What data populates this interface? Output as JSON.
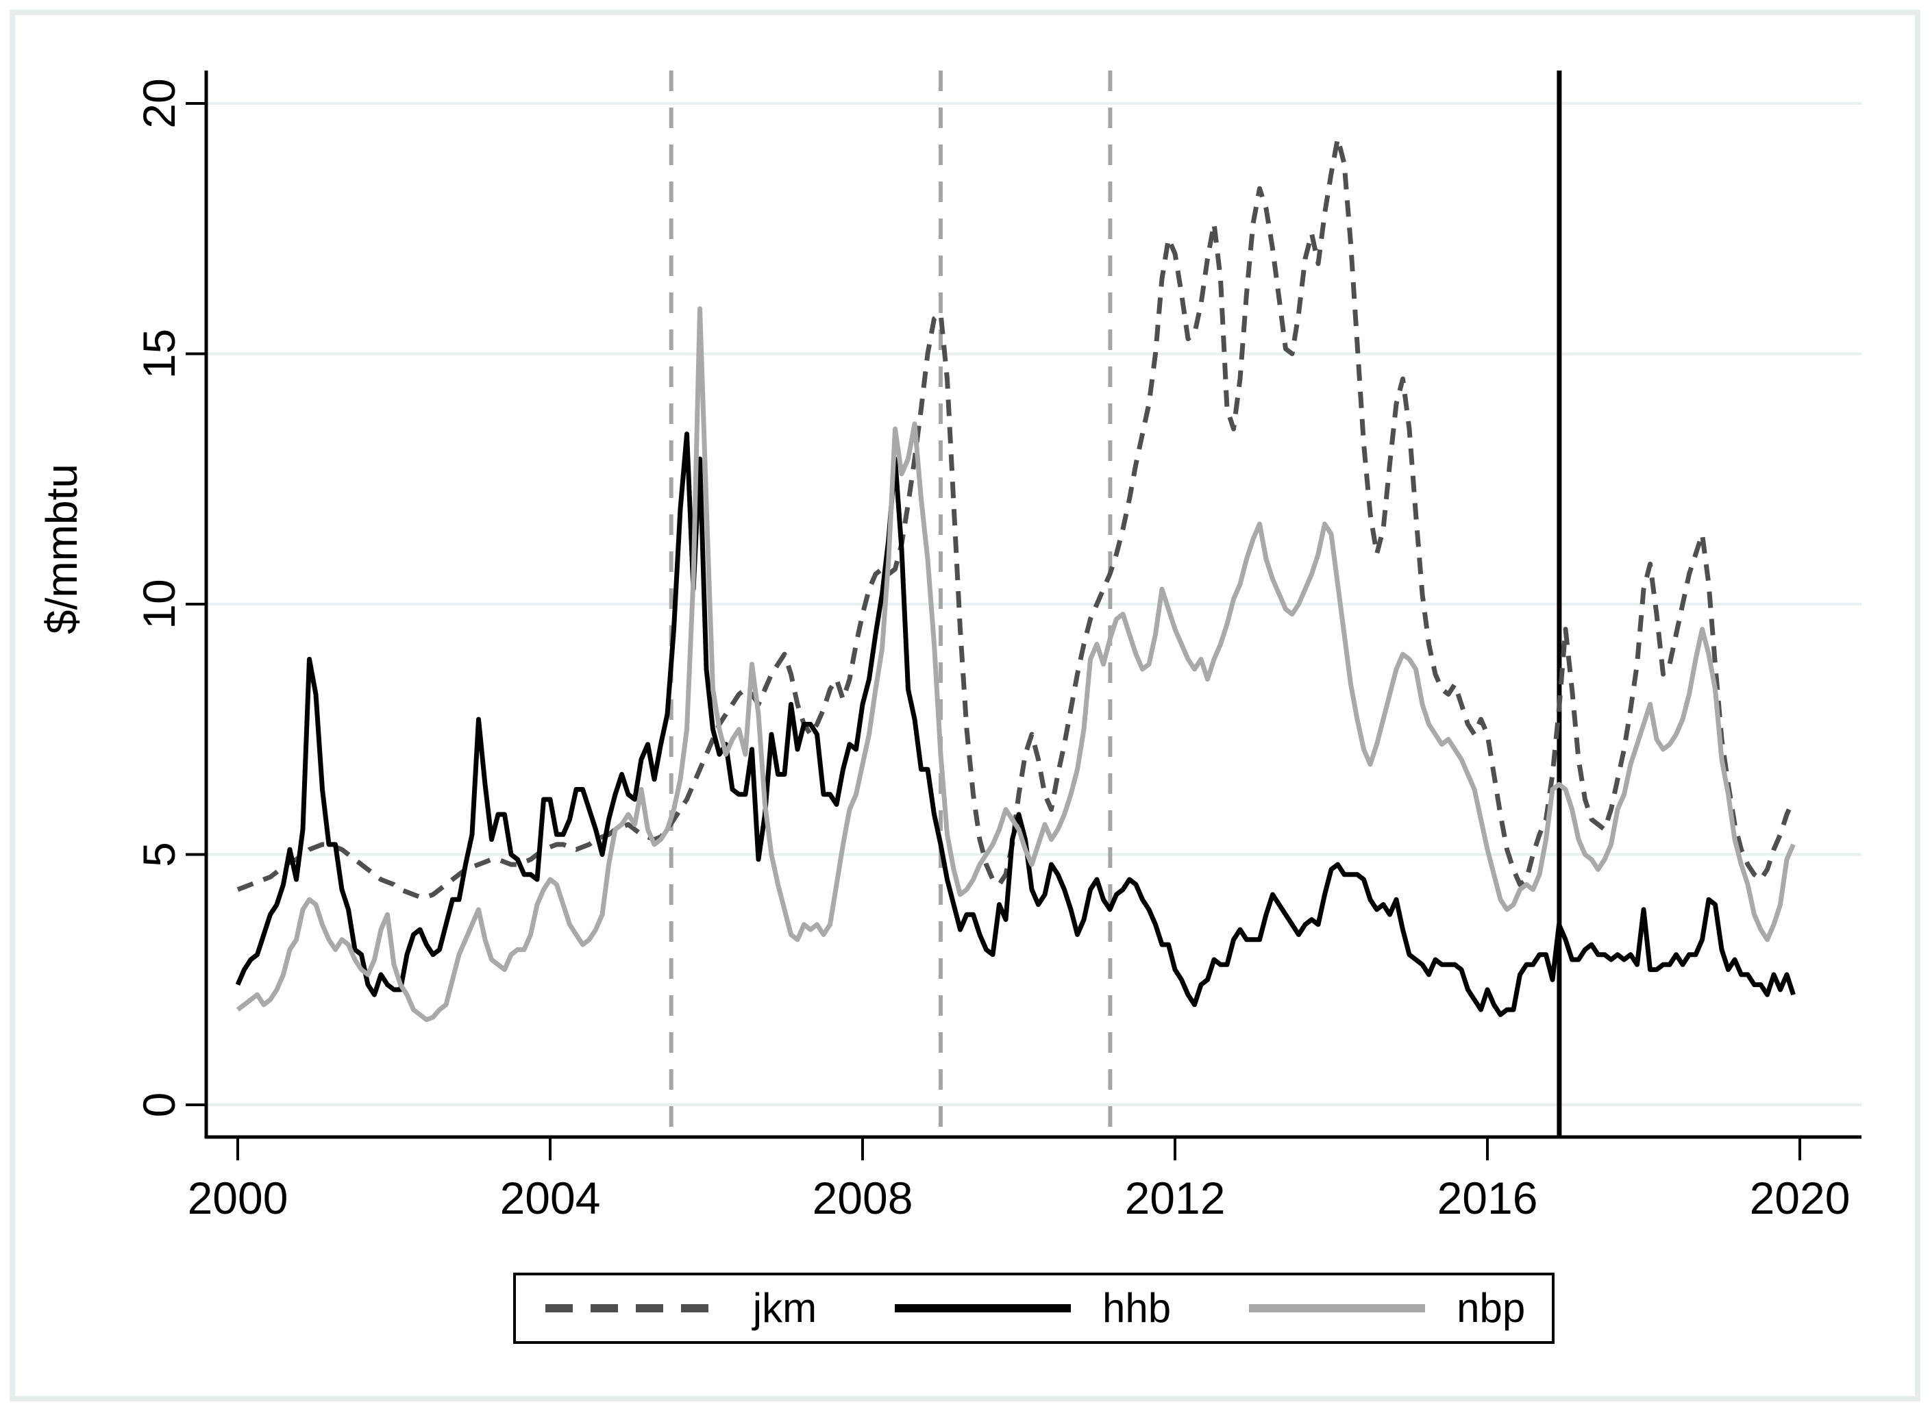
{
  "figure": {
    "ylabel_title": "$/mmbtu",
    "colors": {
      "jkm": "#4f4f4f",
      "hhb": "#000000",
      "nbp": "#a9a9a9",
      "gridline": "#e8f0f2",
      "axis": "#000000",
      "vline_dashed": "#a6a6a6",
      "vline_solid": "#000000",
      "frame": "#e7edef",
      "background": "#ffffff"
    }
  },
  "legend": {
    "items": [
      {
        "label": "jkm",
        "style": "dashed",
        "color": "#4f4f4f"
      },
      {
        "label": "hhb",
        "style": "solid",
        "color": "#000000"
      },
      {
        "label": "nbp",
        "style": "solid",
        "color": "#a9a9a9"
      }
    ]
  },
  "chart_data": {
    "type": "line",
    "title": "",
    "xlabel": "",
    "ylabel": "$/mmbtu",
    "grid": true,
    "legend_position": "bottom-center-boxed",
    "xlim": [
      1999.6,
      2020.8
    ],
    "ylim": [
      -0.65,
      20.6
    ],
    "x_ticks": [
      2000,
      2004,
      2008,
      2012,
      2016,
      2020
    ],
    "y_ticks": [
      0,
      5,
      10,
      15,
      20
    ],
    "y_tick_labels_rotated": true,
    "x_start": 2000.0,
    "x_step": 0.08333333,
    "n_points": 240,
    "vlines_dashed": [
      2005.55,
      2009.0,
      2011.17
    ],
    "vlines_solid": [
      2016.92
    ],
    "series": [
      {
        "name": "jkm",
        "style": "dashed",
        "color": "#4f4f4f",
        "values": [
          4.3,
          4.35,
          4.4,
          4.45,
          4.5,
          4.55,
          4.65,
          4.75,
          4.85,
          4.9,
          5.0,
          5.1,
          5.15,
          5.2,
          5.2,
          5.15,
          5.1,
          5.0,
          4.9,
          4.8,
          4.7,
          4.6,
          4.5,
          4.45,
          4.4,
          4.3,
          4.25,
          4.2,
          4.15,
          4.15,
          4.2,
          4.3,
          4.4,
          4.5,
          4.6,
          4.7,
          4.75,
          4.8,
          4.85,
          4.9,
          4.9,
          4.85,
          4.8,
          4.8,
          4.85,
          4.9,
          5.0,
          5.1,
          5.15,
          5.2,
          5.2,
          5.15,
          5.1,
          5.15,
          5.2,
          5.3,
          5.35,
          5.4,
          5.5,
          5.55,
          5.6,
          5.5,
          5.4,
          5.35,
          5.3,
          5.35,
          5.5,
          5.7,
          5.9,
          6.1,
          6.4,
          6.7,
          7.0,
          7.3,
          7.6,
          7.8,
          8.0,
          8.2,
          8.3,
          8.2,
          8.0,
          8.3,
          8.6,
          8.8,
          9.0,
          8.6,
          8.0,
          7.6,
          7.4,
          7.6,
          7.9,
          8.3,
          8.5,
          8.1,
          8.5,
          9.2,
          9.8,
          10.3,
          10.6,
          10.7,
          10.6,
          10.7,
          11.2,
          12.0,
          12.9,
          13.9,
          15.0,
          15.7,
          15.8,
          14.5,
          12.0,
          9.5,
          7.5,
          6.2,
          5.3,
          4.8,
          4.5,
          4.4,
          4.6,
          5.2,
          6.2,
          7.0,
          7.4,
          6.9,
          6.2,
          5.9,
          6.6,
          7.2,
          7.9,
          8.6,
          9.2,
          9.7,
          10.0,
          10.3,
          10.6,
          11.0,
          11.5,
          12.1,
          12.8,
          13.4,
          14.0,
          15.0,
          16.5,
          17.3,
          17.0,
          16.2,
          15.3,
          15.4,
          16.0,
          16.9,
          17.6,
          16.5,
          13.9,
          13.5,
          14.5,
          16.2,
          17.6,
          18.3,
          17.9,
          17.1,
          16.1,
          15.1,
          15.0,
          15.8,
          16.9,
          17.4,
          16.8,
          17.8,
          18.6,
          19.3,
          18.8,
          17.2,
          15.2,
          13.2,
          11.8,
          11.0,
          11.5,
          12.8,
          14.0,
          14.5,
          13.5,
          11.8,
          10.2,
          9.2,
          8.6,
          8.3,
          8.2,
          8.4,
          8.0,
          7.6,
          7.4,
          7.7,
          7.4,
          6.6,
          5.8,
          5.1,
          4.7,
          4.4,
          4.5,
          5.0,
          5.4,
          5.7,
          6.6,
          7.9,
          9.5,
          8.3,
          6.9,
          6.1,
          5.7,
          5.6,
          5.5,
          5.9,
          6.5,
          7.1,
          7.9,
          8.8,
          10.3,
          10.8,
          9.8,
          8.6,
          8.8,
          9.4,
          10.0,
          10.6,
          11.0,
          11.4,
          10.4,
          8.8,
          7.3,
          6.4,
          5.6,
          5.1,
          4.8,
          4.6,
          4.5,
          4.7,
          5.1,
          5.4,
          5.8,
          6.1
        ]
      },
      {
        "name": "hhb",
        "style": "solid",
        "color": "#000000",
        "values": [
          2.4,
          2.7,
          2.9,
          3.0,
          3.4,
          3.8,
          4.0,
          4.4,
          5.1,
          4.5,
          5.5,
          8.9,
          8.2,
          6.3,
          5.2,
          5.2,
          4.3,
          3.9,
          3.1,
          3.0,
          2.4,
          2.2,
          2.6,
          2.4,
          2.3,
          2.3,
          3.0,
          3.4,
          3.5,
          3.2,
          3.0,
          3.1,
          3.6,
          4.1,
          4.1,
          4.8,
          5.4,
          7.7,
          6.4,
          5.3,
          5.8,
          5.8,
          5.0,
          4.9,
          4.6,
          4.6,
          4.5,
          6.1,
          6.1,
          5.4,
          5.4,
          5.7,
          6.3,
          6.3,
          5.9,
          5.5,
          5.0,
          5.7,
          6.2,
          6.6,
          6.2,
          6.1,
          6.9,
          7.2,
          6.5,
          7.2,
          7.8,
          9.5,
          11.9,
          13.4,
          10.3,
          12.9,
          8.7,
          7.5,
          7.0,
          7.2,
          6.3,
          6.2,
          6.2,
          7.1,
          4.9,
          5.8,
          7.4,
          6.6,
          6.6,
          8.0,
          7.1,
          7.6,
          7.6,
          7.4,
          6.2,
          6.2,
          6.0,
          6.7,
          7.2,
          7.1,
          8.0,
          8.5,
          9.4,
          10.2,
          11.3,
          12.9,
          11.1,
          8.3,
          7.7,
          6.7,
          6.7,
          5.8,
          5.2,
          4.5,
          4.0,
          3.5,
          3.8,
          3.8,
          3.4,
          3.1,
          3.0,
          4.0,
          3.7,
          5.3,
          5.8,
          5.3,
          4.3,
          4.0,
          4.2,
          4.8,
          4.6,
          4.3,
          3.9,
          3.4,
          3.7,
          4.3,
          4.5,
          4.1,
          3.9,
          4.2,
          4.3,
          4.5,
          4.4,
          4.1,
          3.9,
          3.6,
          3.2,
          3.2,
          2.7,
          2.5,
          2.2,
          2.0,
          2.4,
          2.5,
          2.9,
          2.8,
          2.8,
          3.3,
          3.5,
          3.3,
          3.3,
          3.3,
          3.8,
          4.2,
          4.0,
          3.8,
          3.6,
          3.4,
          3.6,
          3.7,
          3.6,
          4.2,
          4.7,
          4.8,
          4.6,
          4.6,
          4.6,
          4.5,
          4.1,
          3.9,
          4.0,
          3.8,
          4.1,
          3.5,
          3.0,
          2.9,
          2.8,
          2.6,
          2.9,
          2.8,
          2.8,
          2.8,
          2.7,
          2.3,
          2.1,
          1.9,
          2.3,
          2.0,
          1.8,
          1.9,
          1.9,
          2.6,
          2.8,
          2.8,
          3.0,
          3.0,
          2.5,
          3.6,
          3.3,
          2.9,
          2.9,
          3.1,
          3.2,
          3.0,
          3.0,
          2.9,
          3.0,
          2.9,
          3.0,
          2.8,
          3.9,
          2.7,
          2.7,
          2.8,
          2.8,
          3.0,
          2.8,
          3.0,
          3.0,
          3.3,
          4.1,
          4.0,
          3.1,
          2.7,
          2.9,
          2.6,
          2.6,
          2.4,
          2.4,
          2.2,
          2.6,
          2.3,
          2.6,
          2.2
        ]
      },
      {
        "name": "nbp",
        "style": "solid",
        "color": "#a9a9a9",
        "values": [
          1.9,
          2.0,
          2.1,
          2.2,
          2.0,
          2.1,
          2.3,
          2.6,
          3.1,
          3.3,
          3.9,
          4.1,
          4.0,
          3.6,
          3.3,
          3.1,
          3.3,
          3.2,
          2.9,
          2.7,
          2.6,
          2.9,
          3.5,
          3.8,
          2.8,
          2.4,
          2.2,
          1.9,
          1.8,
          1.7,
          1.75,
          1.9,
          2.0,
          2.5,
          3.0,
          3.3,
          3.6,
          3.9,
          3.3,
          2.9,
          2.8,
          2.7,
          3.0,
          3.1,
          3.1,
          3.4,
          4.0,
          4.3,
          4.5,
          4.4,
          4.0,
          3.6,
          3.4,
          3.2,
          3.3,
          3.5,
          3.8,
          4.8,
          5.5,
          5.6,
          5.8,
          5.6,
          6.3,
          5.5,
          5.2,
          5.3,
          5.5,
          5.9,
          6.5,
          7.5,
          10.5,
          15.9,
          12.0,
          8.3,
          7.5,
          7.0,
          7.3,
          7.5,
          7.0,
          8.8,
          7.8,
          6.0,
          5.0,
          4.4,
          3.9,
          3.4,
          3.3,
          3.6,
          3.5,
          3.6,
          3.4,
          3.6,
          4.4,
          5.2,
          5.9,
          6.2,
          6.8,
          7.4,
          8.3,
          9.1,
          10.9,
          13.5,
          12.6,
          12.9,
          13.6,
          12.1,
          10.9,
          9.2,
          7.0,
          5.4,
          4.7,
          4.2,
          4.3,
          4.5,
          4.8,
          5.0,
          5.2,
          5.5,
          5.9,
          5.7,
          5.5,
          5.1,
          4.8,
          5.2,
          5.6,
          5.3,
          5.5,
          5.8,
          6.2,
          6.7,
          7.5,
          8.9,
          9.2,
          8.8,
          9.3,
          9.7,
          9.8,
          9.4,
          9.0,
          8.7,
          8.8,
          9.4,
          10.3,
          9.9,
          9.5,
          9.2,
          8.9,
          8.7,
          8.9,
          8.5,
          8.9,
          9.2,
          9.6,
          10.1,
          10.4,
          10.9,
          11.3,
          11.6,
          10.9,
          10.5,
          10.2,
          9.9,
          9.8,
          10.0,
          10.3,
          10.6,
          11.0,
          11.6,
          11.4,
          10.4,
          9.4,
          8.4,
          7.7,
          7.1,
          6.8,
          7.2,
          7.7,
          8.2,
          8.7,
          9.0,
          8.9,
          8.7,
          8.0,
          7.6,
          7.4,
          7.2,
          7.3,
          7.1,
          6.9,
          6.6,
          6.3,
          5.7,
          5.1,
          4.6,
          4.1,
          3.9,
          4.0,
          4.3,
          4.4,
          4.3,
          4.6,
          5.3,
          6.3,
          6.4,
          6.3,
          5.9,
          5.3,
          5.0,
          4.9,
          4.7,
          4.9,
          5.2,
          5.9,
          6.2,
          6.8,
          7.2,
          7.6,
          8.0,
          7.3,
          7.1,
          7.2,
          7.4,
          7.7,
          8.2,
          8.9,
          9.5,
          9.0,
          8.3,
          6.9,
          6.2,
          5.3,
          4.8,
          4.4,
          3.8,
          3.5,
          3.3,
          3.6,
          4.0,
          4.9,
          5.2
        ]
      }
    ]
  }
}
